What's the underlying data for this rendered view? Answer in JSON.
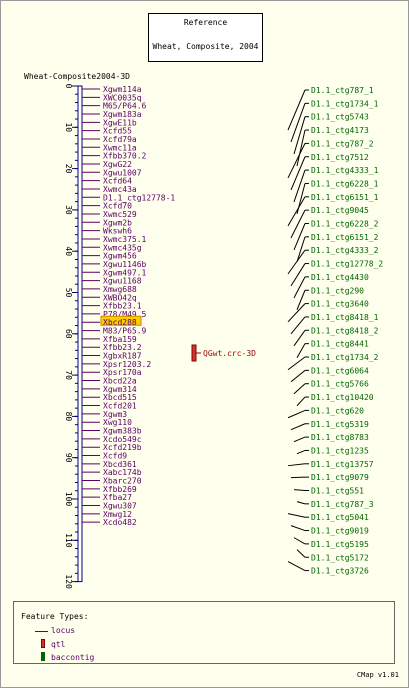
{
  "reference": {
    "label": "Reference",
    "map_name": "Wheat, Composite, 2004"
  },
  "map": {
    "title": "Wheat-Composite2004-3D",
    "axis_min": 0,
    "axis_max": 120,
    "ticks": [
      "0",
      "10",
      "20",
      "30",
      "40",
      "50",
      "60",
      "70",
      "80",
      "90",
      "100",
      "110",
      "120"
    ],
    "loci": [
      "Xgwm114a",
      "XWC0035q",
      "M65/P64.6",
      "Xgwm183a",
      "XgwE11b",
      "Xcfd55",
      "Xcfd79a",
      "Xwmc11a",
      "Xfbb370.2",
      "XgwG22",
      "Xgwu1007",
      "Xcfd64",
      "Xwmc43a",
      "D1.1_ctg12778-1",
      "Xcfd70",
      "Xwmc529",
      "Xgwm2b",
      "Wkswh6",
      "Xwmc375.1",
      "Xwmc435g",
      "Xgwm456",
      "Xgwu1146b",
      "Xgwm497.1",
      "Xgwu1168",
      "Xmwg688",
      "XWBO42q",
      "Xfbb23.1",
      "P78/M49.5",
      "Xbcd288",
      "M83/P65.9",
      "Xfba159",
      "Xfbb23.2",
      "XgbxR187",
      "Xpsr1203.2",
      "Xpsr170a",
      "Xbcd22a",
      "Xgwm314",
      "Xbcd515",
      "Xcfd201",
      "Xgwm3",
      "Xwg110",
      "Xgwm383b",
      "Xcdo549c",
      "Xcfd219b",
      "Xcfd9",
      "Xbcd361",
      "Xabc174b",
      "Xbarc270",
      "Xfbb269",
      "Xfba27",
      "Xgwu307",
      "Xmwg12",
      "Xcdo482"
    ],
    "highlighted_locus": "Xbcd288",
    "qtl": {
      "label": "QGwt.crc-3D"
    },
    "contigs": [
      "D1.1_ctg787_1",
      "D1.1_ctg1734_1",
      "D1.1_ctg5743",
      "D1.1_ctg4173",
      "D1.1_ctg787_2",
      "D1.1_ctg7512",
      "D1.1_ctg4333_1",
      "D1.1_ctg6228_1",
      "D1.1_ctg6151_1",
      "D1.1_ctg9045",
      "D1.1_ctg6228_2",
      "D1.1_ctg6151_2",
      "D1.1_ctg4333_2",
      "D1.1_ctg12778_2",
      "D1.1_ctg4430",
      "D1.1_ctg290",
      "D1.1_ctg3640",
      "D1.1_ctg8418_1",
      "D1.1_ctg8418_2",
      "D1.1_ctg8441",
      "D1.1_ctg1734_2",
      "D1.1_ctg6064",
      "D1.1_ctg5766",
      "D1.1_ctg10420",
      "D1.1_ctg620",
      "D1.1_ctg5319",
      "D1.1_ctg8783",
      "D1.1_ctg1235",
      "D1.1_ctg13757",
      "D1.1_ctg9079",
      "D1.1_ctg551",
      "D1.1_ctg787_3",
      "D1.1_ctg5041",
      "D1.1_ctg9019",
      "D1.1_ctg5195",
      "D1.1_ctg5172",
      "D1.1_ctg3726"
    ]
  },
  "legend": {
    "title": "Feature Types:",
    "items": [
      {
        "label": "locus",
        "icon": "line-icon"
      },
      {
        "label": "qtl",
        "icon": "qtl-bar-icon"
      },
      {
        "label": "baccontig",
        "icon": "contig-bar-icon"
      }
    ]
  },
  "colors": {
    "background": "#FFFFEE",
    "locus_text": "#5a0066",
    "axis": "#000080",
    "highlight": "#FFCC00",
    "qtl": "#CC3333",
    "contig": "#006600"
  },
  "version": "CMap v1.01"
}
